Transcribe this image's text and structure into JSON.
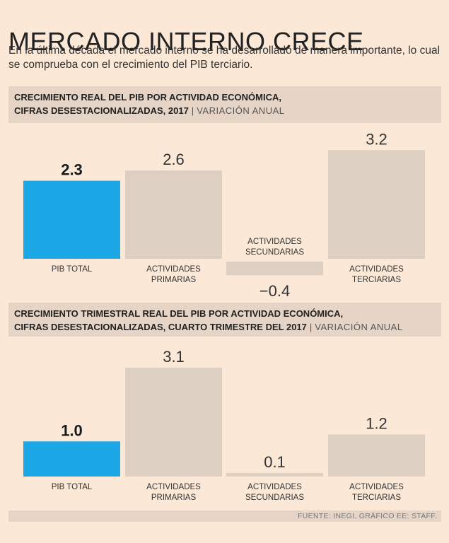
{
  "header": {
    "title": "MERCADO INTERNO CRECE",
    "subtitle": "En la última década el mercado interno se ha desarrollado de manera importante, lo cual se comprueba con el crecimiento del PIB terciario."
  },
  "colors": {
    "highlight": "#1ba7e6",
    "bar": "#ddd0c3",
    "background": "#fbe8d7",
    "header_bg": "#e6d5c6"
  },
  "chart_data": [
    {
      "type": "bar",
      "title_line1": "CRECIMIENTO REAL DEL PIB POR ACTIVIDAD ECONÓMICA,",
      "title_line2": "CIFRAS DESESTACIONALIZADAS, 2017",
      "unit": "VARIACIÓN ANUAL",
      "categories": [
        [
          "PIB TOTAL"
        ],
        [
          "ACTIVIDADES",
          "PRIMARIAS"
        ],
        [
          "ACTIVIDADES",
          "SECUNDARIAS"
        ],
        [
          "ACTIVIDADES",
          "TERCIARIAS"
        ]
      ],
      "values": [
        2.3,
        2.6,
        -0.4,
        3.2
      ],
      "labels": [
        "2.3",
        "2.6",
        "−0.4",
        "3.2"
      ],
      "highlight_index": 0
    },
    {
      "type": "bar",
      "title_line1": "CRECIMIENTO TRIMESTRAL REAL DEL PIB POR ACTIVIDAD ECONÓMICA,",
      "title_line2": "CIFRAS DESESTACIONALIZADAS, CUARTO TRIMESTRE DEL 2017",
      "unit": "VARIACIÓN ANUAL",
      "categories": [
        [
          "PIB TOTAL"
        ],
        [
          "ACTIVIDADES",
          "PRIMARIAS"
        ],
        [
          "ACTIVIDADES",
          "SECUNDARIAS"
        ],
        [
          "ACTIVIDADES",
          "TERCIARIAS"
        ]
      ],
      "values": [
        1.0,
        3.1,
        0.1,
        1.2
      ],
      "labels": [
        "1.0",
        "3.1",
        "0.1",
        "1.2"
      ],
      "highlight_index": 0
    }
  ],
  "footer": {
    "source": "FUENTE: INEGI.  GRÁFICO EE: STAFF."
  }
}
